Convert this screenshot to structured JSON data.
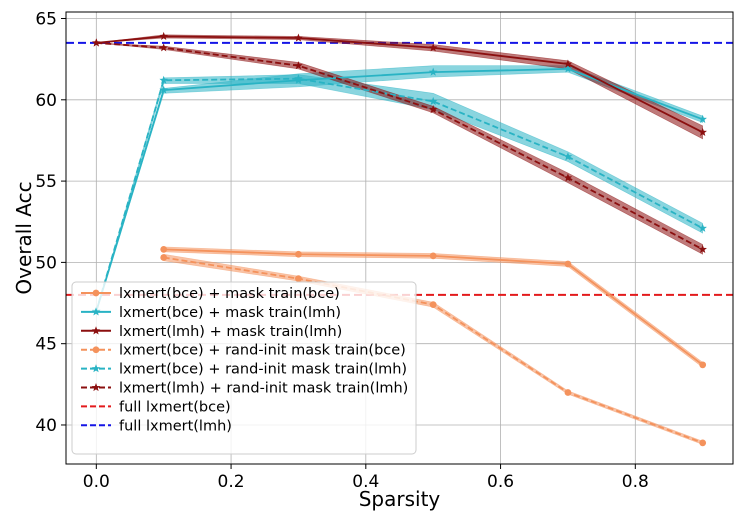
{
  "chart_data": {
    "type": "line",
    "xlabel": "Sparsity",
    "ylabel": "Overall Acc",
    "xlim": [
      -0.045,
      0.945
    ],
    "ylim": [
      37.6,
      65.4
    ],
    "xticks": [
      0.0,
      0.2,
      0.4,
      0.6,
      0.8
    ],
    "xtick_labels": [
      "0.0",
      "0.2",
      "0.4",
      "0.6",
      "0.8"
    ],
    "yticks": [
      40,
      45,
      50,
      55,
      60,
      65
    ],
    "ytick_labels": [
      "40",
      "45",
      "50",
      "55",
      "60",
      "65"
    ],
    "grid": true,
    "legend_position": "lower-left",
    "series": [
      {
        "name": "lxmert(bce) + mask train(bce)",
        "color": "#f4925c",
        "linestyle": "solid",
        "marker": "circle",
        "x": [
          0.1,
          0.3,
          0.5,
          0.7,
          0.9
        ],
        "y": [
          50.8,
          50.5,
          50.4,
          49.9,
          43.7
        ],
        "band_lower": [
          50.65,
          50.35,
          50.25,
          49.75,
          43.55
        ],
        "band_upper": [
          50.95,
          50.65,
          50.55,
          50.05,
          43.85
        ]
      },
      {
        "name": "lxmert(bce) + mask train(lmh)",
        "color": "#29b3c4",
        "linestyle": "solid",
        "marker": "star",
        "x": [
          0.0,
          0.1,
          0.3,
          0.5,
          0.7,
          0.9
        ],
        "y": [
          47.0,
          60.6,
          61.2,
          61.7,
          61.9,
          58.8
        ],
        "band_lower": [
          47.0,
          60.4,
          60.8,
          61.4,
          61.7,
          58.6
        ],
        "band_upper": [
          47.0,
          60.7,
          61.6,
          62.1,
          62.1,
          59.0
        ]
      },
      {
        "name": "lxmert(lmh) + mask train(lmh)",
        "color": "#8b0f0f",
        "linestyle": "solid",
        "marker": "star",
        "x": [
          0.0,
          0.1,
          0.3,
          0.5,
          0.7,
          0.9
        ],
        "y": [
          63.5,
          63.9,
          63.8,
          63.2,
          62.2,
          58.0
        ],
        "band_lower": [
          63.5,
          63.8,
          63.7,
          63.0,
          61.9,
          57.6
        ],
        "band_upper": [
          63.5,
          64.0,
          63.9,
          63.4,
          62.4,
          58.4
        ]
      },
      {
        "name": "lxmert(bce) + rand-init mask train(bce)",
        "color": "#f4925c",
        "linestyle": "dashed",
        "marker": "circle",
        "x": [
          0.1,
          0.3,
          0.5,
          0.7,
          0.9
        ],
        "y": [
          50.3,
          49.0,
          47.4,
          42.0,
          38.9
        ],
        "band_lower": [
          50.1,
          48.85,
          47.25,
          41.9,
          38.8
        ],
        "band_upper": [
          50.5,
          49.15,
          47.55,
          42.1,
          39.0
        ]
      },
      {
        "name": "lxmert(bce) + rand-init mask train(lmh)",
        "color": "#29b3c4",
        "linestyle": "dashed",
        "marker": "star",
        "x": [
          0.0,
          0.1,
          0.3,
          0.5,
          0.7,
          0.9
        ],
        "y": [
          47.0,
          61.2,
          61.3,
          59.9,
          56.5,
          52.1
        ],
        "band_lower": [
          47.0,
          61.0,
          61.0,
          59.4,
          56.2,
          51.8
        ],
        "band_upper": [
          47.0,
          61.35,
          61.55,
          60.4,
          56.8,
          52.4
        ]
      },
      {
        "name": "lxmert(lmh) + rand-init mask train(lmh)",
        "color": "#8b0f0f",
        "linestyle": "dashed",
        "marker": "star",
        "x": [
          0.0,
          0.1,
          0.3,
          0.5,
          0.7,
          0.9
        ],
        "y": [
          63.5,
          63.2,
          62.1,
          59.4,
          55.2,
          50.8
        ],
        "band_lower": [
          63.5,
          63.1,
          61.9,
          59.2,
          54.9,
          50.5
        ],
        "band_upper": [
          63.5,
          63.3,
          62.3,
          59.6,
          55.5,
          51.1
        ]
      }
    ],
    "reference_lines": [
      {
        "name": "full lxmert(bce)",
        "color": "#e31a1c",
        "linestyle": "dashed",
        "y": 48.0
      },
      {
        "name": "full lxmert(lmh)",
        "color": "#1515e6",
        "linestyle": "dashed",
        "y": 63.5
      }
    ]
  }
}
